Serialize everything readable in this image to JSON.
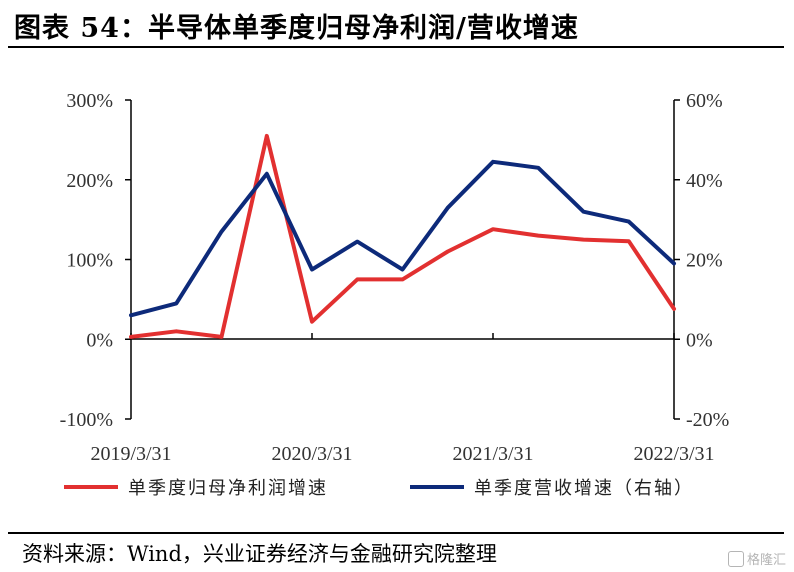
{
  "title": "图表 54：半导体单季度归母净利润/营收增速",
  "source": "资料来源：Wind，兴业证券经济与金融研究院整理",
  "watermark": "格隆汇",
  "colors": {
    "profit": "#e23030",
    "revenue": "#0d2a7a"
  },
  "chart_data": {
    "type": "line",
    "x_ticks": [
      "2019/3/31",
      "2020/3/31",
      "2021/3/31",
      "2022/3/31"
    ],
    "x": [
      "2019/3/31",
      "2019/6/30",
      "2019/9/30",
      "2019/12/31",
      "2020/3/31",
      "2020/6/30",
      "2020/9/30",
      "2020/12/31",
      "2021/3/31",
      "2021/6/30",
      "2021/9/30",
      "2021/12/31",
      "2022/3/31"
    ],
    "y_left": {
      "ticks": [
        "300%",
        "200%",
        "100%",
        "0%",
        "-100%"
      ],
      "ylim": [
        -100,
        300
      ]
    },
    "y_right": {
      "ticks": [
        "60%",
        "40%",
        "20%",
        "0%",
        "-20%"
      ],
      "ylim": [
        -20,
        60
      ]
    },
    "series": [
      {
        "name": "单季度归母净利润增速",
        "axis": "left",
        "color_key": "profit",
        "values": [
          3,
          10,
          3,
          255,
          22,
          75,
          75,
          110,
          138,
          130,
          125,
          123,
          38
        ]
      },
      {
        "name": "单季度营收增速（右轴）",
        "axis": "right",
        "color_key": "revenue",
        "values": [
          6,
          9,
          27,
          41.5,
          17.5,
          24.5,
          17.5,
          33,
          44.5,
          43,
          32,
          29.5,
          19
        ]
      }
    ],
    "legend_position": "bottom",
    "grid": false
  }
}
